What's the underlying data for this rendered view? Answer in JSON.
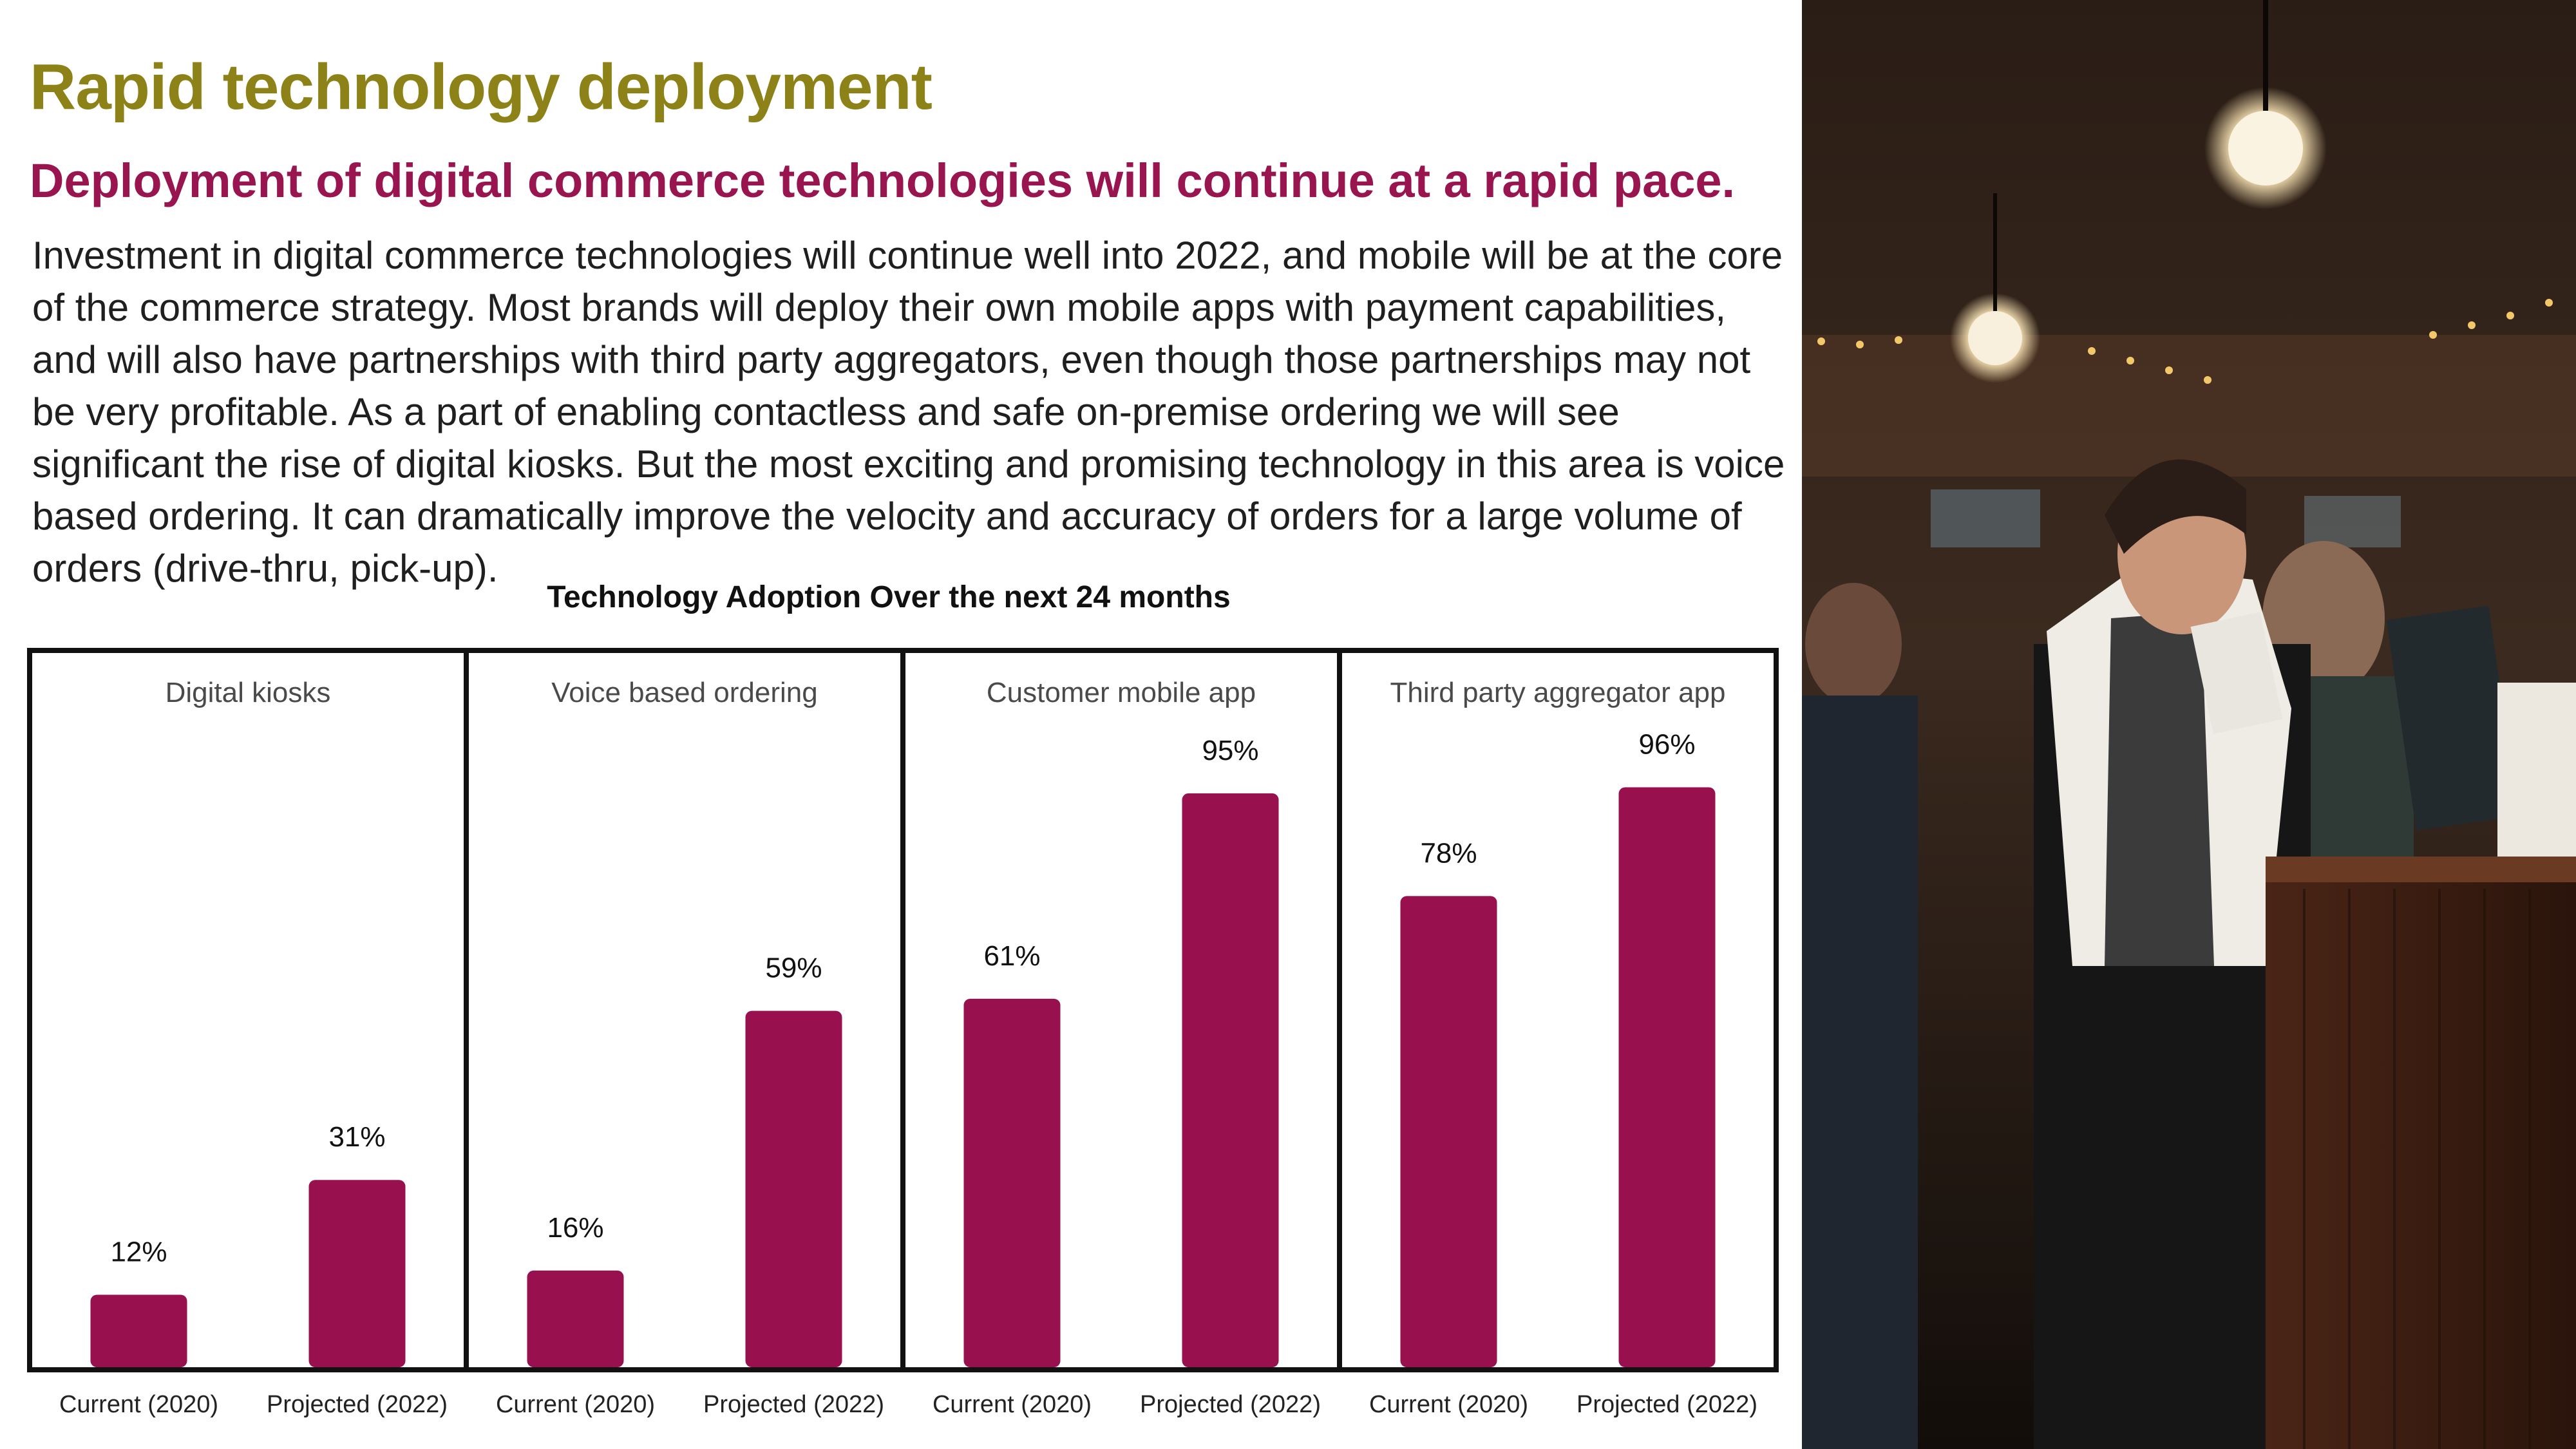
{
  "slide": {
    "title": "Rapid technology deployment",
    "subtitle": "Deployment of digital commerce technologies will continue at a rapid pace.",
    "body": "Investment in digital commerce technologies will continue well into 2022, and mobile will be at the core of the commerce strategy. Most brands will deploy their own mobile apps with payment capabilities, and will also have partnerships with third party aggregators, even though those partnerships may not be very profitable. As a part of enabling contactless and safe on-premise ordering we will see significant the rise of digital kiosks. But the most exciting and promising technology in this area is voice based ordering. It can dramatically improve the velocity and accuracy of orders for a large volume of orders (drive-thru, pick-up)."
  },
  "colors": {
    "title": "#8c8217",
    "subtitle": "#99154f",
    "bar": "#99104f",
    "frame": "#111111"
  },
  "chart_data": {
    "type": "bar",
    "title": "Technology Adoption Over the next 24 months",
    "ylim": [
      0,
      100
    ],
    "grid": false,
    "legend": "none",
    "panels": [
      {
        "name": "Digital kiosks",
        "categories": [
          "Current (2020)",
          "Projected (2022)"
        ],
        "values": [
          12,
          31
        ],
        "labels": [
          "12%",
          "31%"
        ]
      },
      {
        "name": "Voice based ordering",
        "categories": [
          "Current (2020)",
          "Projected (2022)"
        ],
        "values": [
          16,
          59
        ],
        "labels": [
          "16%",
          "59%"
        ]
      },
      {
        "name": "Customer mobile app",
        "categories": [
          "Current (2020)",
          "Projected (2022)"
        ],
        "values": [
          61,
          95
        ],
        "labels": [
          "61%",
          "95%"
        ]
      },
      {
        "name": "Third party aggregator app",
        "categories": [
          "Current (2020)",
          "Projected (2022)"
        ],
        "values": [
          78,
          96
        ],
        "labels": [
          "78%",
          "96%"
        ]
      }
    ]
  }
}
